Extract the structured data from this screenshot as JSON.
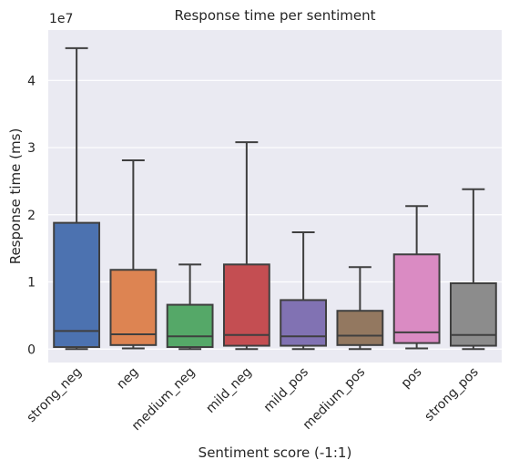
{
  "chart_data": {
    "type": "box",
    "title": "Response time per sentiment",
    "xlabel": "Sentiment score (-1:1)",
    "ylabel": "Response time (ms)",
    "y_scale_label": "1e7",
    "y_scale": 10000000,
    "ylim": [
      -2000000,
      47500000
    ],
    "yticks": [
      0,
      10000000,
      20000000,
      30000000,
      40000000
    ],
    "ytick_labels": [
      "0",
      "1",
      "2",
      "3",
      "4"
    ],
    "grid": true,
    "background": "#eaeaf2",
    "categories": [
      "strong_neg",
      "neg",
      "medium_neg",
      "mild_neg",
      "mild_pos",
      "medium_pos",
      "pos",
      "strong_pos"
    ],
    "colors": [
      "#4c72b0",
      "#dd8452",
      "#55a868",
      "#c44e52",
      "#8172b3",
      "#937860",
      "#da8bc3",
      "#8c8c8c"
    ],
    "boxes": [
      {
        "whislo": 0,
        "q1": 300000,
        "med": 2700000,
        "q3": 18800000,
        "whishi": 44800000
      },
      {
        "whislo": 100000,
        "q1": 600000,
        "med": 2200000,
        "q3": 11800000,
        "whishi": 28100000
      },
      {
        "whislo": 0,
        "q1": 300000,
        "med": 1900000,
        "q3": 6600000,
        "whishi": 12600000
      },
      {
        "whislo": 0,
        "q1": 500000,
        "med": 2100000,
        "q3": 12600000,
        "whishi": 30800000
      },
      {
        "whislo": 0,
        "q1": 500000,
        "med": 1900000,
        "q3": 7300000,
        "whishi": 17400000
      },
      {
        "whislo": 0,
        "q1": 600000,
        "med": 2000000,
        "q3": 5700000,
        "whishi": 12200000
      },
      {
        "whislo": 100000,
        "q1": 900000,
        "med": 2500000,
        "q3": 14100000,
        "whishi": 21300000
      },
      {
        "whislo": 0,
        "q1": 500000,
        "med": 2100000,
        "q3": 9800000,
        "whishi": 23800000
      }
    ]
  }
}
